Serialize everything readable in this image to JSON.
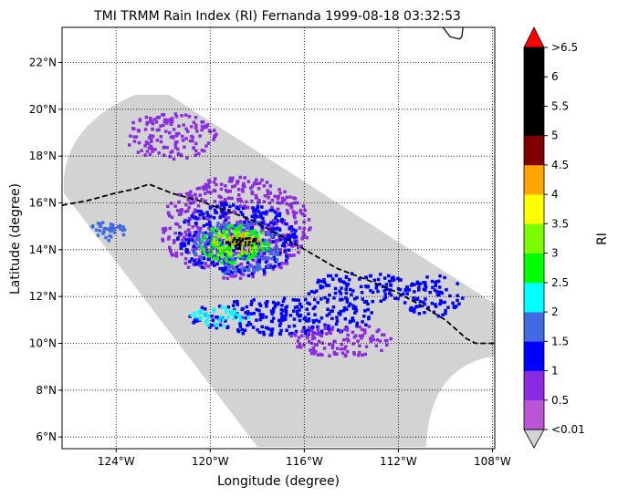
{
  "chart_data": {
    "type": "heatmap",
    "title": "TMI TRMM Rain Index (RI) Fernanda 1999-08-18 03:32:53",
    "xlabel": "Longitude (degree)",
    "ylabel": "Latitude (degree)",
    "xlim": [
      -126.3,
      -107.9
    ],
    "ylim": [
      5.5,
      23.5
    ],
    "x_ticks": [
      {
        "value": -124,
        "label": "124°W"
      },
      {
        "value": -120,
        "label": "120°W"
      },
      {
        "value": -116,
        "label": "116°W"
      },
      {
        "value": -112,
        "label": "112°W"
      },
      {
        "value": -108,
        "label": "108°W"
      }
    ],
    "y_ticks": [
      {
        "value": 6,
        "label": "6°N"
      },
      {
        "value": 8,
        "label": "8°N"
      },
      {
        "value": 10,
        "label": "10°N"
      },
      {
        "value": 12,
        "label": "12°N"
      },
      {
        "value": 14,
        "label": "14°N"
      },
      {
        "value": 16,
        "label": "16°N"
      },
      {
        "value": 18,
        "label": "18°N"
      },
      {
        "value": 20,
        "label": "20°N"
      },
      {
        "value": 22,
        "label": "22°N"
      }
    ],
    "grid": true,
    "grid_style": "dotted",
    "swath_color": "#d3d3d3",
    "storm_track": [
      [
        -126.3,
        15.9
      ],
      [
        -125.2,
        16.1
      ],
      [
        -124.1,
        16.4
      ],
      [
        -123.2,
        16.6
      ],
      [
        -122.6,
        16.8
      ],
      [
        -121.6,
        16.4
      ],
      [
        -120.5,
        16.1
      ],
      [
        -119.4,
        15.7
      ],
      [
        -118.3,
        15.3
      ],
      [
        -117.0,
        14.6
      ],
      [
        -115.8,
        13.9
      ],
      [
        -114.6,
        13.2
      ],
      [
        -113.3,
        12.7
      ],
      [
        -112.1,
        12.2
      ],
      [
        -111.0,
        11.6
      ],
      [
        -110.0,
        11.0
      ],
      [
        -109.1,
        10.2
      ],
      [
        -108.7,
        10.0
      ],
      [
        -107.9,
        10.0
      ]
    ],
    "coastline": [
      [
        -110.1,
        23.5
      ],
      [
        -109.8,
        23.1
      ],
      [
        -109.4,
        23.0
      ],
      [
        -109.3,
        23.1
      ],
      [
        -109.25,
        23.5
      ]
    ],
    "rain_features": [
      {
        "name": "north swath scatter",
        "lon": -121.8,
        "lat": 18.9,
        "rx": 2.0,
        "ry": 1.0,
        "level": 1
      },
      {
        "name": "west band",
        "lon": -124.5,
        "lat": 14.8,
        "rx": 1.0,
        "ry": 0.45,
        "level": 3
      },
      {
        "name": "outer band",
        "lon": -119.0,
        "lat": 15.0,
        "rx": 3.2,
        "ry": 2.2,
        "level": 1
      },
      {
        "name": "outer band inner",
        "lon": -118.9,
        "lat": 14.5,
        "rx": 2.6,
        "ry": 1.6,
        "level": 2
      },
      {
        "name": "core outer",
        "lon": -118.9,
        "lat": 14.2,
        "rx": 1.9,
        "ry": 1.2,
        "level": 3
      },
      {
        "name": "core",
        "lon": -119.0,
        "lat": 14.3,
        "rx": 1.5,
        "ry": 0.85,
        "level": 5
      },
      {
        "name": "core inner",
        "lon": -119.0,
        "lat": 14.3,
        "rx": 1.2,
        "ry": 0.6,
        "level": 6
      },
      {
        "name": "eyewall",
        "lon": -118.9,
        "lat": 14.3,
        "rx": 1.0,
        "ry": 0.45,
        "level": 8
      },
      {
        "name": "eyewall peak",
        "lon": -118.7,
        "lat": 14.35,
        "rx": 0.7,
        "ry": 0.28,
        "level": 10
      },
      {
        "name": "south spiral band",
        "lon": -117.0,
        "lat": 11.2,
        "rx": 4.0,
        "ry": 0.8,
        "level": 2
      },
      {
        "name": "southwest band",
        "lon": -119.6,
        "lat": 11.2,
        "rx": 1.3,
        "ry": 0.4,
        "level": 4
      },
      {
        "name": "east band",
        "lon": -113.8,
        "lat": 12.4,
        "rx": 2.2,
        "ry": 0.7,
        "level": 2
      },
      {
        "name": "far east band",
        "lon": -110.6,
        "lat": 12.1,
        "rx": 1.3,
        "ry": 0.9,
        "level": 2
      },
      {
        "name": "south scatter",
        "lon": -114.5,
        "lat": 10.2,
        "rx": 2.2,
        "ry": 0.7,
        "level": 1
      }
    ],
    "colorbar": {
      "label": "RI",
      "colors": [
        "#ba55d3",
        "#8a2be2",
        "#0000ff",
        "#4169e1",
        "#00ffff",
        "#00ff00",
        "#7cfc00",
        "#ffff00",
        "#ffa500",
        "#800000",
        "#000000",
        "#000000",
        "#000000"
      ],
      "under_color": "#d3d3d3",
      "over_color": "#ff0000",
      "tick_labels": [
        "<0.01",
        "0.5",
        "1",
        "1.5",
        "2",
        "2.5",
        "3",
        "3.5",
        "4",
        "4.5",
        "5",
        "5.5",
        "6",
        ">6.5"
      ]
    }
  }
}
